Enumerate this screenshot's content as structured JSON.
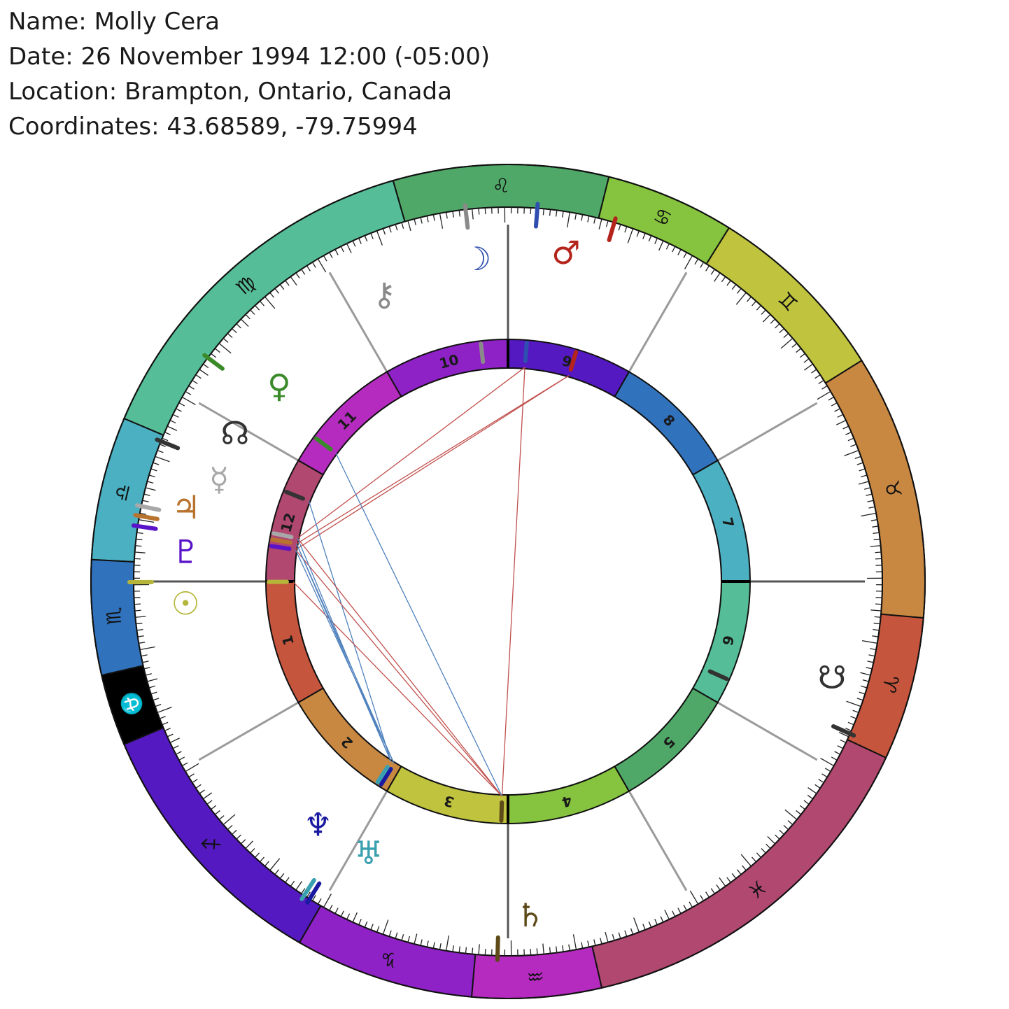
{
  "info": {
    "name_line": "Name: Molly Cera",
    "date_line": "Date: 26 November 1994 12:00 (-05:00)",
    "location_line": "Location: Brampton, Ontario, Canada",
    "coords_line": "Coordinates: 43.68589, -79.75994"
  },
  "zodiac": [
    {
      "name": "aries-sign",
      "glyph": "♈",
      "color": "#c6553d"
    },
    {
      "name": "taurus-sign",
      "glyph": "♉",
      "color": "#c88842"
    },
    {
      "name": "gemini-sign",
      "glyph": "♊",
      "color": "#bfc33e"
    },
    {
      "name": "cancer-sign",
      "glyph": "♋",
      "color": "#86c33e"
    },
    {
      "name": "leo-sign",
      "glyph": "♌",
      "color": "#4fa868"
    },
    {
      "name": "virgo-sign",
      "glyph": "♍",
      "color": "#55bd98"
    },
    {
      "name": "libra-sign",
      "glyph": "♎",
      "color": "#4bb0c2"
    },
    {
      "name": "scorpio-sign",
      "glyph": "♏",
      "color": "#3172bd"
    },
    {
      "name": "sagittarius-sign",
      "glyph": "♐",
      "color": "#5419c0"
    },
    {
      "name": "capricorn-sign",
      "glyph": "♑",
      "color": "#8f22c6"
    },
    {
      "name": "aquarius-sign",
      "glyph": "♒",
      "color": "#b52bbf"
    },
    {
      "name": "pisces-sign",
      "glyph": "♓",
      "color": "#b04870"
    }
  ],
  "special_segment": {
    "name": "ophiuchus-sign",
    "glyph": "⛎",
    "color": "#000000",
    "glyph_color": "#ffffff"
  },
  "houses": [
    {
      "label": "1",
      "color": "#c6553d"
    },
    {
      "label": "2",
      "color": "#c88842"
    },
    {
      "label": "3",
      "color": "#bfc33e"
    },
    {
      "label": "4",
      "color": "#86c33e"
    },
    {
      "label": "5",
      "color": "#4fa868"
    },
    {
      "label": "6",
      "color": "#55bd98"
    },
    {
      "label": "7",
      "color": "#4bb0c2"
    },
    {
      "label": "8",
      "color": "#3172bd"
    },
    {
      "label": "9",
      "color": "#5419c0"
    },
    {
      "label": "10",
      "color": "#8f22c6"
    },
    {
      "label": "11",
      "color": "#b52bbf"
    },
    {
      "label": "12",
      "color": "#b04870"
    }
  ],
  "planets": [
    {
      "name": "sun-icon",
      "glyph": "☉",
      "color": "#b5b53a"
    },
    {
      "name": "pluto-icon",
      "glyph": "♇",
      "color": "#5a13c8"
    },
    {
      "name": "jupiter-icon",
      "glyph": "♃",
      "color": "#b8732f"
    },
    {
      "name": "mercury-icon",
      "glyph": "☿",
      "color": "#a8a8a8"
    },
    {
      "name": "north-node-icon",
      "glyph": "☊",
      "color": "#333333"
    },
    {
      "name": "venus-icon",
      "glyph": "♀",
      "color": "#3a8a2a"
    },
    {
      "name": "chiron-icon",
      "glyph": "⚷",
      "color": "#8a8a8a"
    },
    {
      "name": "moon-icon",
      "glyph": "☽",
      "color": "#2f4fb0"
    },
    {
      "name": "mars-icon",
      "glyph": "♂",
      "color": "#b5241c"
    },
    {
      "name": "south-node-icon",
      "glyph": "☋",
      "color": "#333333"
    },
    {
      "name": "saturn-icon",
      "glyph": "♄",
      "color": "#5d4a18"
    },
    {
      "name": "neptune-icon",
      "glyph": "♆",
      "color": "#1a1aa0"
    },
    {
      "name": "uranus-icon",
      "glyph": "♅",
      "color": "#3aa0b0"
    }
  ],
  "aspect_colors": {
    "red": "#c0504d",
    "blue": "#4f81bd"
  }
}
